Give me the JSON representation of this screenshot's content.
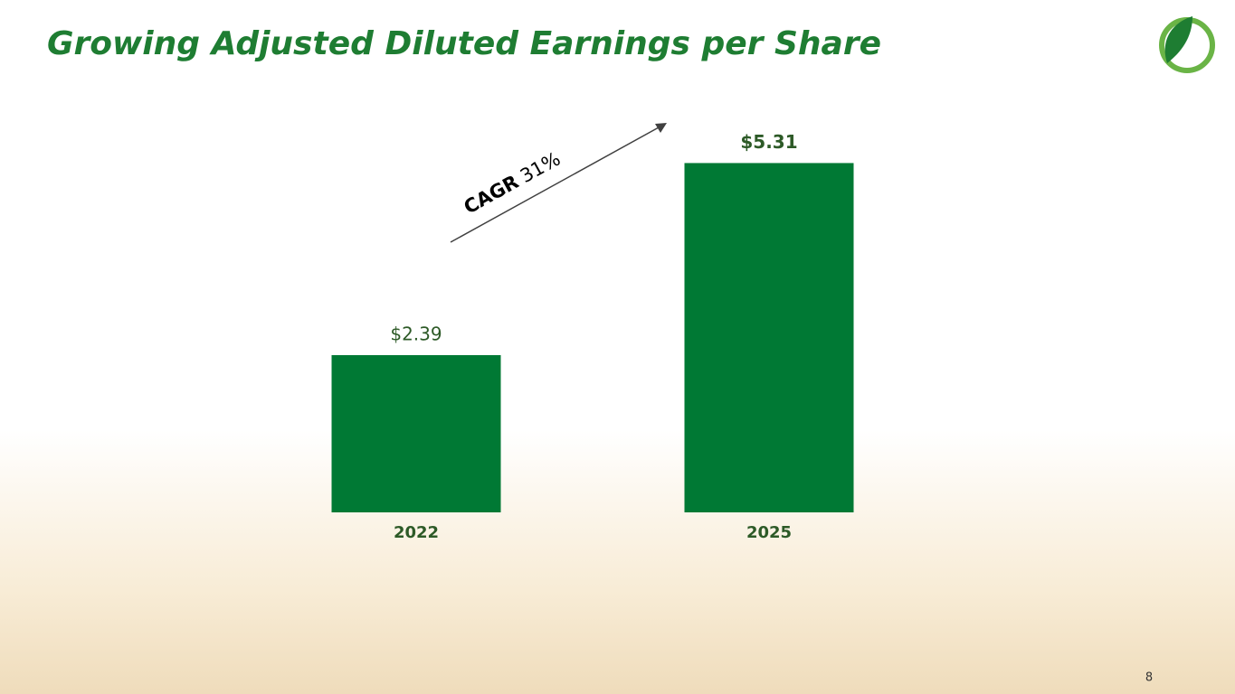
{
  "chart_data": {
    "type": "bar",
    "title": "Growing Adjusted Diluted Earnings per Share",
    "categories": [
      "2022",
      "2025"
    ],
    "values": [
      2.39,
      5.31
    ],
    "value_labels": [
      "$2.39",
      "$5.31"
    ],
    "color": "#007934",
    "annotation": {
      "label": "CAGR",
      "value": "31%"
    }
  },
  "slide": {
    "page_number": "8"
  }
}
